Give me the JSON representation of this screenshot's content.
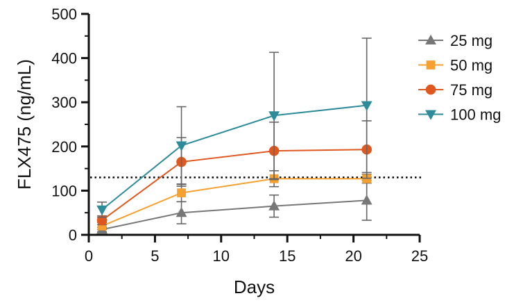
{
  "chart_data": {
    "type": "line",
    "title": "",
    "xlabel": "Days",
    "ylabel": "FLX475 (ng/mL)",
    "xlim": [
      0,
      25
    ],
    "ylim": [
      0,
      500
    ],
    "xticks": [
      0,
      5,
      10,
      15,
      20,
      25
    ],
    "yticks": [
      0,
      100,
      200,
      300,
      400,
      500
    ],
    "grid": false,
    "legend_position": "right",
    "reference_line": {
      "y": 130,
      "style": "dotted",
      "color": "#000000"
    },
    "series": [
      {
        "name": "25 mg",
        "color": "#777777",
        "marker": "triangle-up",
        "x": [
          1,
          7,
          14,
          21
        ],
        "y": [
          12,
          50,
          65,
          78
        ],
        "error": [
          5,
          25,
          25,
          45
        ]
      },
      {
        "name": "50 mg",
        "color": "#F5A030",
        "marker": "square",
        "x": [
          1,
          7,
          14,
          21
        ],
        "y": [
          20,
          95,
          127,
          127
        ],
        "error": [
          8,
          20,
          18,
          10
        ]
      },
      {
        "name": "75 mg",
        "color": "#E0571F",
        "marker": "circle",
        "x": [
          1,
          7,
          14,
          21
        ],
        "y": [
          33,
          165,
          190,
          193
        ],
        "error": [
          10,
          55,
          65,
          65
        ]
      },
      {
        "name": "100 mg",
        "color": "#2E8B99",
        "marker": "triangle-down",
        "x": [
          1,
          7,
          14,
          21
        ],
        "y": [
          57,
          202,
          270,
          293
        ],
        "error": [
          17,
          88,
          143,
          152
        ]
      }
    ]
  }
}
